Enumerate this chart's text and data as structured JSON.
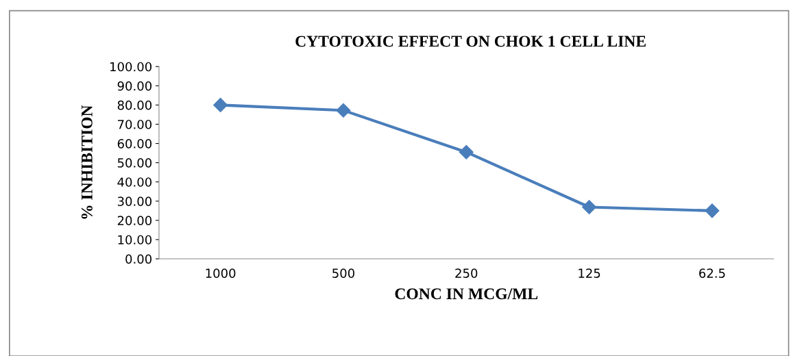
{
  "chart_data": {
    "type": "line",
    "title": "CYTOTOXIC EFFECT ON CHOK 1 CELL LINE",
    "xlabel": "CONC IN MCG/ML",
    "ylabel": "% INHIBITION",
    "categories": [
      "1000",
      "500",
      "250",
      "125",
      "62.5"
    ],
    "series": [
      {
        "color": "#4a7ebb",
        "values": [
          80.0,
          77.2,
          55.5,
          26.9,
          25.0
        ]
      }
    ],
    "ylim": [
      0,
      100
    ],
    "yticks": [
      {
        "value": 0,
        "label": "0.00"
      },
      {
        "value": 10,
        "label": "10.00"
      },
      {
        "value": 20,
        "label": "20.00"
      },
      {
        "value": 30,
        "label": "30.00"
      },
      {
        "value": 40,
        "label": "40.00"
      },
      {
        "value": 50,
        "label": "50.00"
      },
      {
        "value": 60,
        "label": "60.00"
      },
      {
        "value": 70,
        "label": "70.00"
      },
      {
        "value": 80,
        "label": "80.00"
      },
      {
        "value": 90,
        "label": "90.00"
      },
      {
        "value": 100,
        "label": "100.00"
      }
    ],
    "marker": "diamond",
    "line_style": "solid",
    "grid": false,
    "legend": false
  }
}
